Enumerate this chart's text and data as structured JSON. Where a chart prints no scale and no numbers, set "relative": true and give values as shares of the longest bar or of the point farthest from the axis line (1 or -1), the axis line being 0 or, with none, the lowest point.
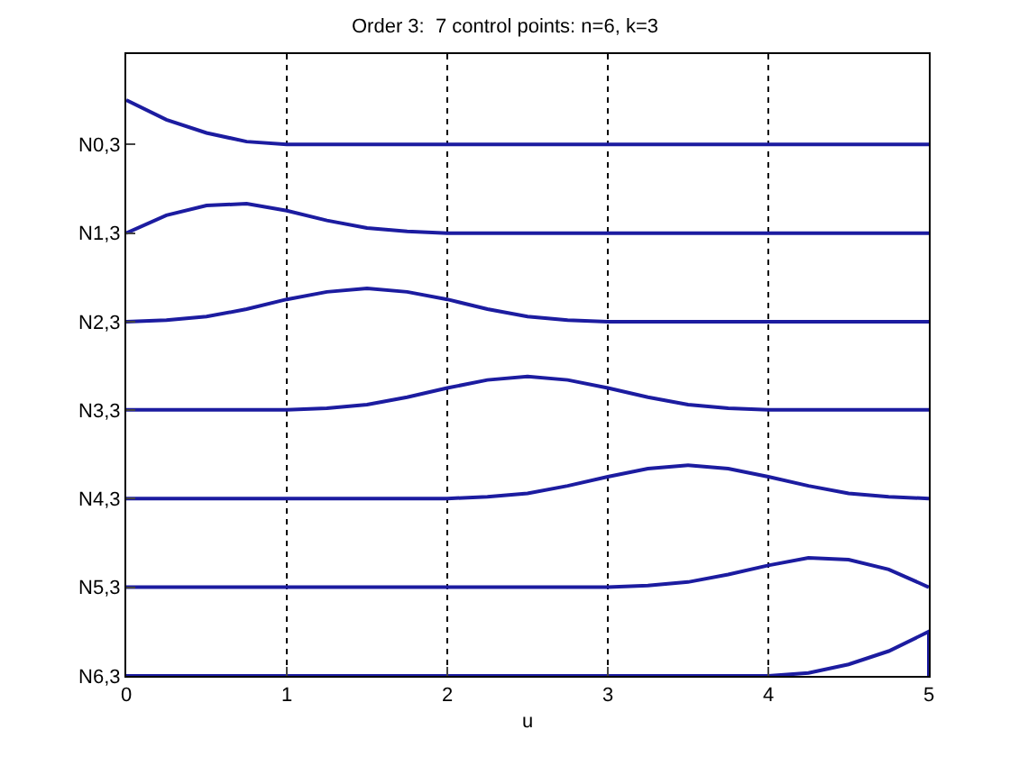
{
  "chart_data": {
    "type": "line",
    "title": "Order 3:  7 control points: n=6, k=3",
    "xlabel": "u",
    "relative": true,
    "x": [
      0,
      0.25,
      0.5,
      0.75,
      1,
      1.25,
      1.5,
      1.75,
      2,
      2.25,
      2.5,
      2.75,
      3,
      3.25,
      3.5,
      3.75,
      4,
      4.25,
      4.5,
      4.75,
      5,
      5
    ],
    "series": [
      {
        "name": "N0,3",
        "color": "#1c1ca0",
        "values": [
          1,
          0.966,
          0.943,
          0.928,
          0.923,
          0.923,
          0.923,
          0.923,
          0.923,
          0.923,
          0.923,
          0.923,
          0.923,
          0.923,
          0.923,
          0.923,
          0.923,
          0.923,
          0.923,
          0.923,
          0.923,
          0.923
        ]
      },
      {
        "name": "N1,3",
        "color": "#1c1ca0",
        "values": [
          0.769,
          0.8,
          0.817,
          0.82,
          0.808,
          0.791,
          0.778,
          0.772,
          0.769,
          0.769,
          0.769,
          0.769,
          0.769,
          0.769,
          0.769,
          0.769,
          0.769,
          0.769,
          0.769,
          0.769,
          0.769,
          0.769
        ]
      },
      {
        "name": "N2,3",
        "color": "#1c1ca0",
        "values": [
          0.615,
          0.618,
          0.624,
          0.637,
          0.654,
          0.667,
          0.673,
          0.667,
          0.654,
          0.637,
          0.624,
          0.618,
          0.615,
          0.615,
          0.615,
          0.615,
          0.615,
          0.615,
          0.615,
          0.615,
          0.615,
          0.615
        ]
      },
      {
        "name": "N3,3",
        "color": "#1c1ca0",
        "values": [
          0.462,
          0.462,
          0.462,
          0.462,
          0.462,
          0.465,
          0.471,
          0.484,
          0.5,
          0.514,
          0.52,
          0.514,
          0.5,
          0.484,
          0.471,
          0.465,
          0.462,
          0.462,
          0.462,
          0.462,
          0.462,
          0.462
        ]
      },
      {
        "name": "N4,3",
        "color": "#1c1ca0",
        "values": [
          0.308,
          0.308,
          0.308,
          0.308,
          0.308,
          0.308,
          0.308,
          0.308,
          0.308,
          0.311,
          0.317,
          0.33,
          0.346,
          0.36,
          0.366,
          0.36,
          0.346,
          0.33,
          0.317,
          0.311,
          0.308,
          0.308
        ]
      },
      {
        "name": "N5,3",
        "color": "#1c1ca0",
        "values": [
          0.154,
          0.154,
          0.154,
          0.154,
          0.154,
          0.154,
          0.154,
          0.154,
          0.154,
          0.154,
          0.154,
          0.154,
          0.154,
          0.157,
          0.163,
          0.176,
          0.192,
          0.205,
          0.202,
          0.185,
          0.154,
          0.154
        ]
      },
      {
        "name": "N6,3",
        "color": "#1c1ca0",
        "values": [
          0,
          0,
          0,
          0,
          0,
          0,
          0,
          0,
          0,
          0,
          0,
          0,
          0,
          0,
          0,
          0,
          0,
          0.005,
          0.02,
          0.043,
          0.077,
          0
        ]
      }
    ],
    "xlim": [
      0,
      5
    ],
    "xticks": [
      0,
      1,
      2,
      3,
      4,
      5
    ],
    "grid": "x",
    "legend": false,
    "marker": "none",
    "line_style": "solid"
  }
}
